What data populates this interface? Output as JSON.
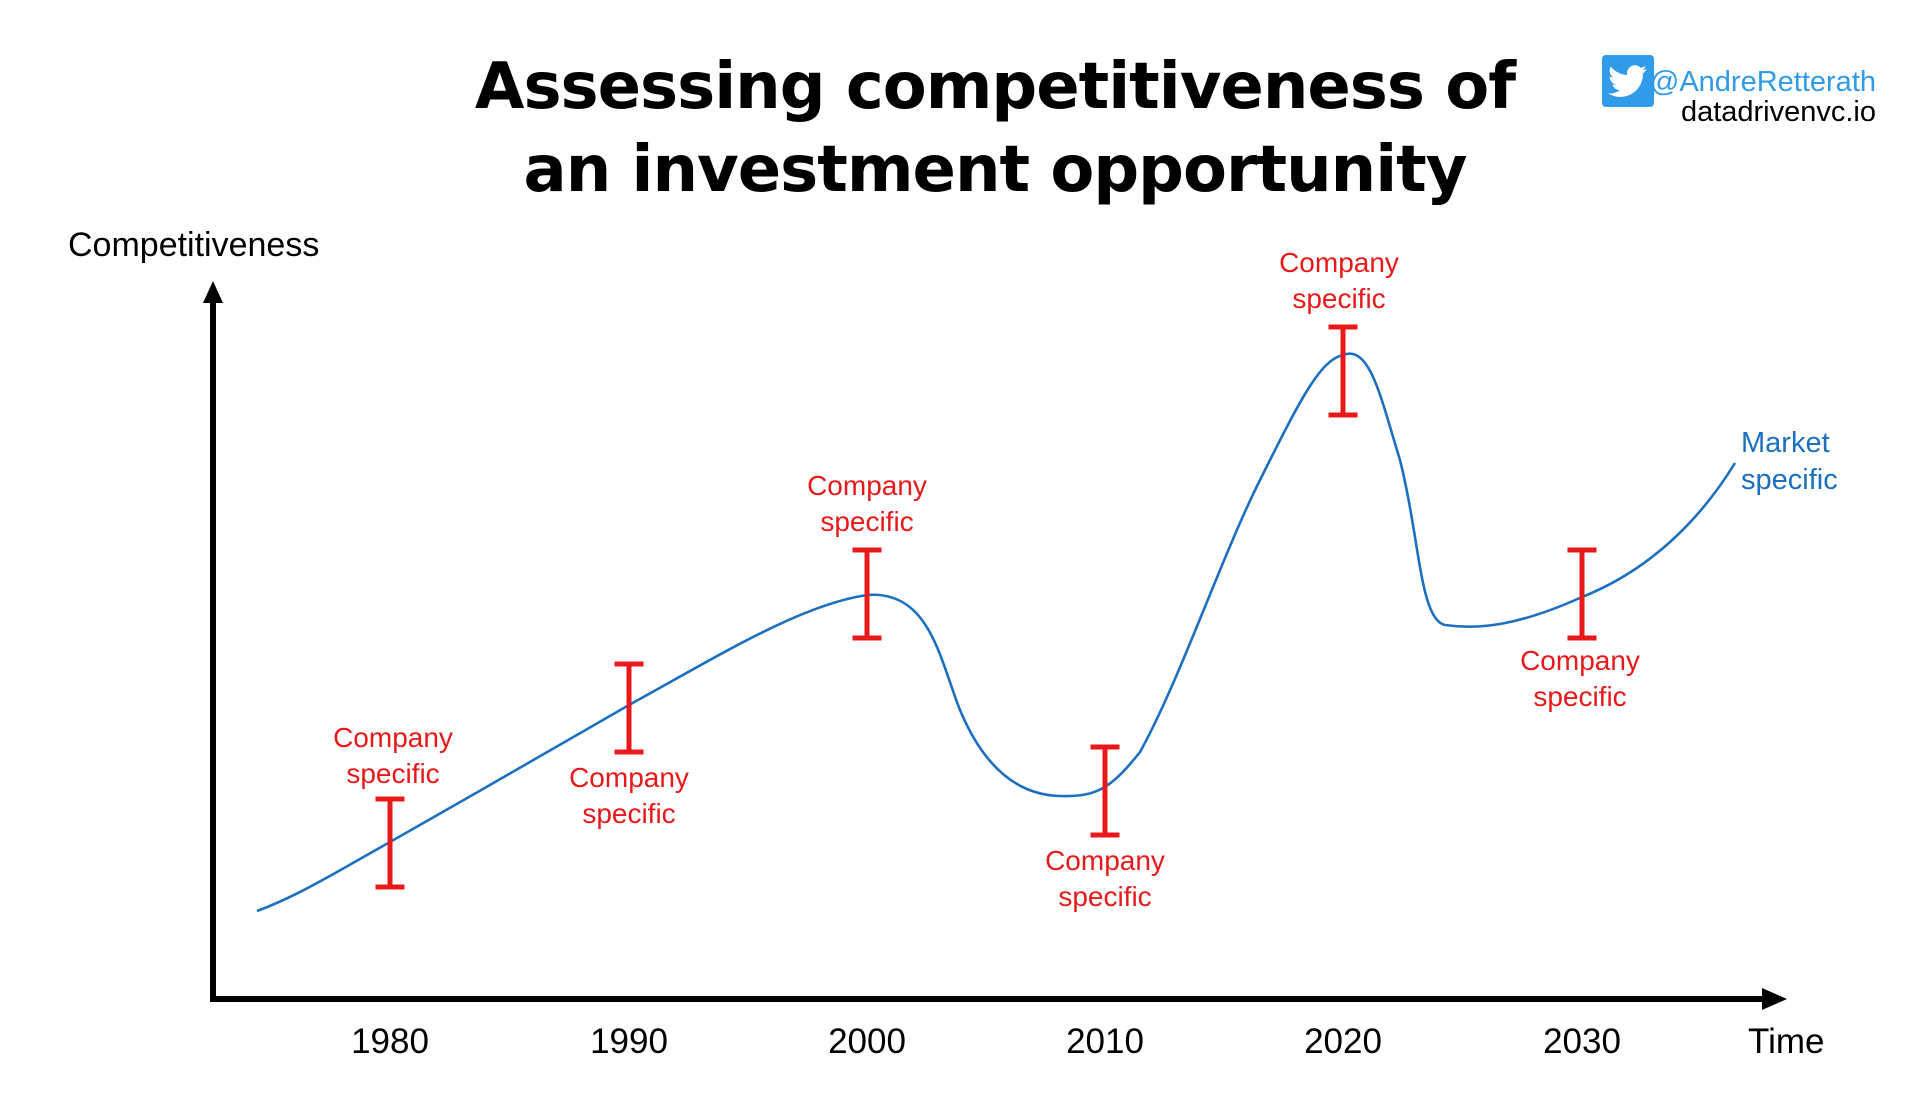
{
  "title": {
    "line1": "Assessing competitiveness of",
    "line2": "an investment opportunity"
  },
  "credit": {
    "handle": "@AndreRetterath",
    "site": "datadrivenvc.io",
    "icon": "twitter-bird-icon",
    "handle_color": "#2f9be9"
  },
  "axes": {
    "y_label": "Competitiveness",
    "x_label": "Time",
    "ticks": [
      "1980",
      "1990",
      "2000",
      "2010",
      "2020",
      "2030"
    ]
  },
  "curve": {
    "label_line1": "Market",
    "label_line2": "specific",
    "color": "#1d6fbf"
  },
  "annotations": [
    {
      "line1": "Company",
      "line2": "specific",
      "year": "1980",
      "label_position": "above"
    },
    {
      "line1": "Company",
      "line2": "specific",
      "year": "1990",
      "label_position": "below"
    },
    {
      "line1": "Company",
      "line2": "specific",
      "year": "2000",
      "label_position": "above"
    },
    {
      "line1": "Company",
      "line2": "specific",
      "year": "2010",
      "label_position": "below"
    },
    {
      "line1": "Company",
      "line2": "specific",
      "year": "2020",
      "label_position": "above"
    },
    {
      "line1": "Company",
      "line2": "specific",
      "year": "2030",
      "label_position": "below"
    }
  ],
  "colors": {
    "annotation": "#e8191a",
    "axis": "#000000"
  }
}
